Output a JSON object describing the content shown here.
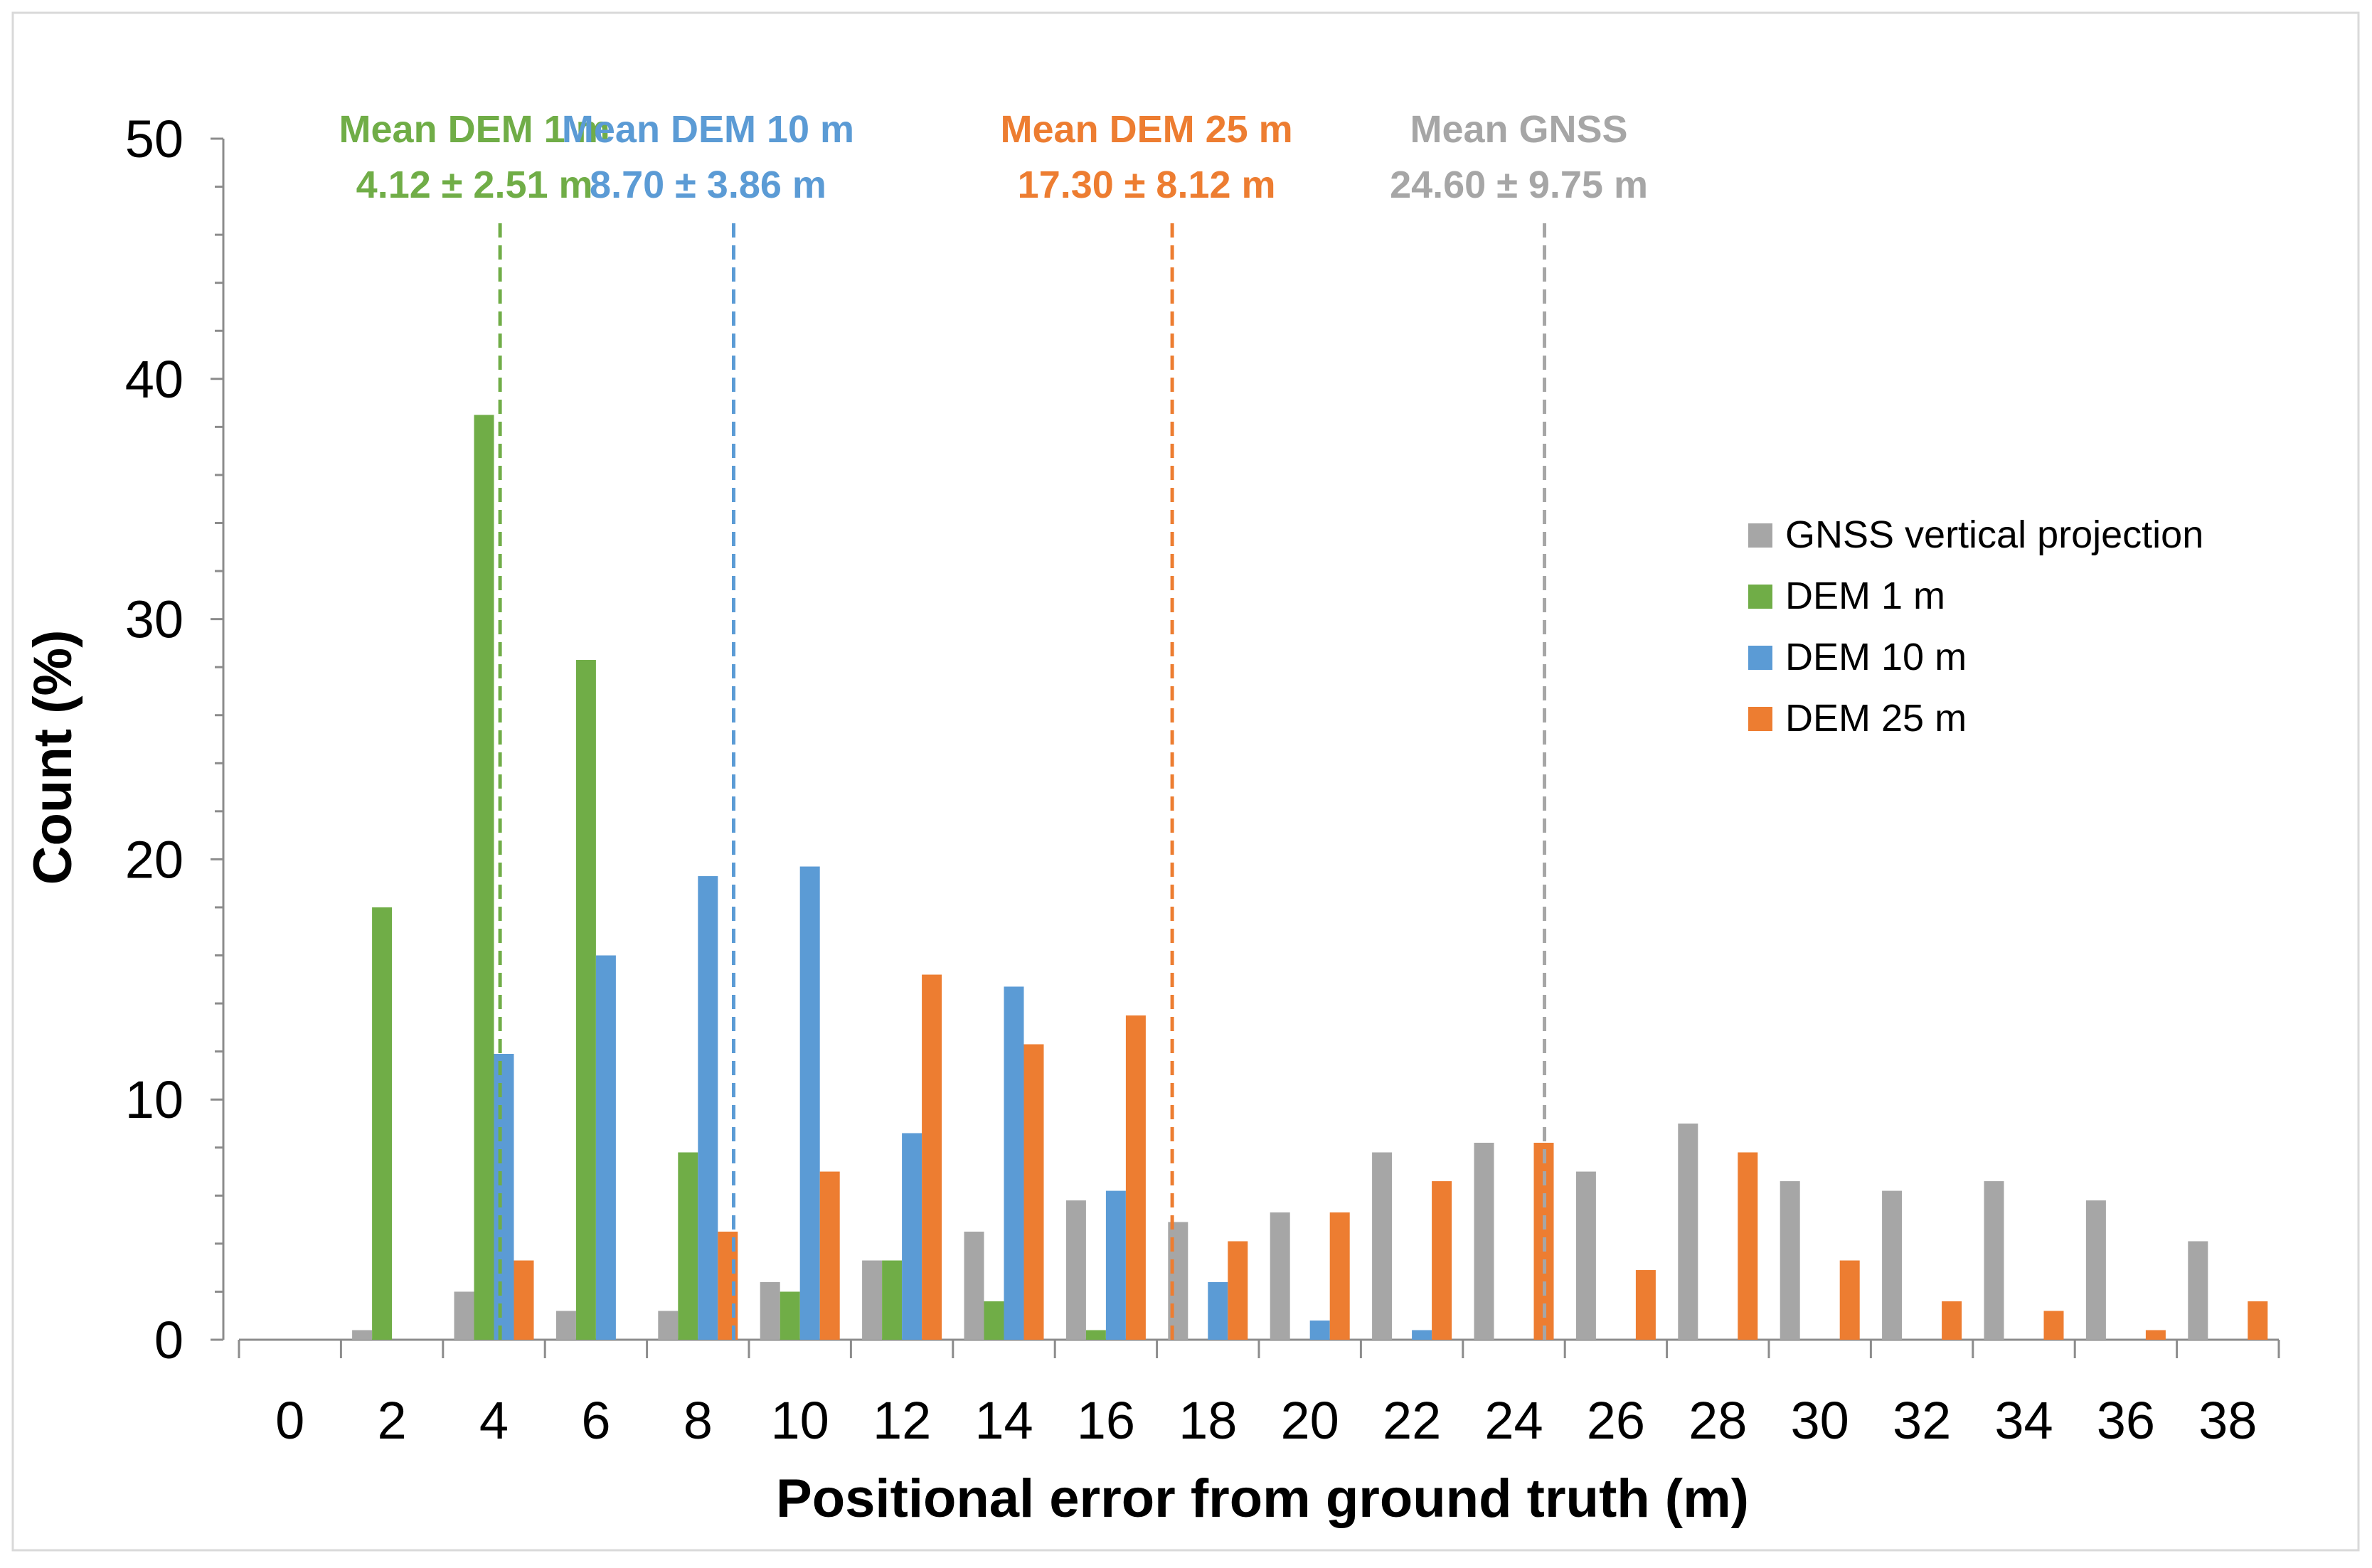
{
  "chart_data": {
    "type": "bar",
    "title": "",
    "xlabel": "Positional error from ground truth (m)",
    "ylabel": "Count (%)",
    "ylim": [
      0,
      50
    ],
    "yticks": [
      "0",
      "10",
      "20",
      "30",
      "40",
      "50"
    ],
    "categories": [
      "0",
      "2",
      "4",
      "6",
      "8",
      "10",
      "12",
      "14",
      "16",
      "18",
      "20",
      "22",
      "24",
      "26",
      "28",
      "30",
      "32",
      "34",
      "36",
      "38"
    ],
    "series": [
      {
        "name": "GNSS vertical projection",
        "color": "#a6a6a6",
        "values": [
          0,
          0.4,
          2.0,
          1.2,
          1.2,
          2.4,
          3.3,
          4.5,
          5.8,
          4.9,
          5.3,
          7.8,
          8.2,
          7.0,
          9.0,
          6.6,
          6.2,
          6.6,
          5.8,
          4.1
        ]
      },
      {
        "name": "DEM 1 m",
        "color": "#70ad47",
        "values": [
          0,
          18.0,
          38.5,
          28.3,
          7.8,
          2.0,
          3.3,
          1.6,
          0.4,
          0,
          0,
          0,
          0,
          0,
          0,
          0,
          0,
          0,
          0,
          0
        ]
      },
      {
        "name": "DEM 10 m",
        "color": "#5b9bd5",
        "values": [
          0,
          0,
          11.9,
          16.0,
          19.3,
          19.7,
          8.6,
          14.7,
          6.2,
          2.4,
          0.8,
          0.4,
          0,
          0,
          0,
          0,
          0,
          0,
          0,
          0
        ]
      },
      {
        "name": "DEM 25 m",
        "color": "#ed7d31",
        "values": [
          0,
          0,
          3.3,
          0,
          4.5,
          7.0,
          15.2,
          12.3,
          13.5,
          4.1,
          5.3,
          6.6,
          8.2,
          2.9,
          7.8,
          3.3,
          1.6,
          1.2,
          0.4,
          1.6
        ]
      }
    ],
    "mean_lines": [
      {
        "x": 4.12,
        "title": "Mean DEM 1 m",
        "value": "4.12 ± 2.51 m",
        "color": "#70ad47"
      },
      {
        "x": 8.7,
        "title": "Mean DEM 10 m",
        "value": "8.70 ± 3.86 m",
        "color": "#5b9bd5"
      },
      {
        "x": 17.3,
        "title": "Mean DEM 25 m",
        "value": "17.30 ± 8.12 m",
        "color": "#ed7d31"
      },
      {
        "x": 24.6,
        "title": "Mean GNSS",
        "value": "24.60 ± 9.75 m",
        "color": "#a6a6a6"
      }
    ],
    "legend_position": "right",
    "grid": false
  }
}
